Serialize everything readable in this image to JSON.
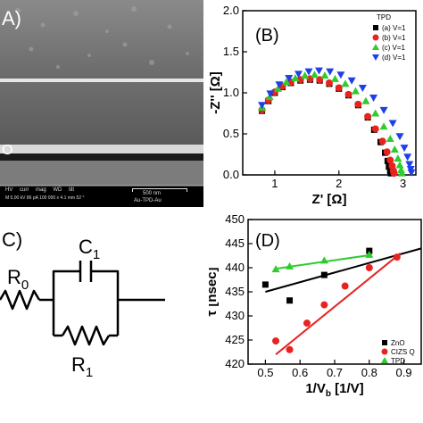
{
  "panel_a": {
    "label": "A)",
    "layer_label": "O",
    "sem_bar": {
      "fields": [
        "HV",
        "curr",
        "mag",
        "WD",
        "tilt"
      ],
      "values": "M 5.00 kV 86 pA 100 000 x 4.1 mm 52 °",
      "scale_label": "500 nm",
      "sample": "Au-TPD-Au"
    }
  },
  "panel_b": {
    "label": "(B)",
    "legend_title": "TPD",
    "legend_items": [
      "(a) V=1",
      "(b) V=1",
      "(c) V=1",
      "(d) V=1"
    ]
  },
  "panel_c": {
    "label": "C)",
    "components": {
      "r0": "R",
      "r0_sub": "0",
      "c1": "C",
      "c1_sub": "1",
      "r1": "R",
      "r1_sub": "1"
    }
  },
  "panel_d": {
    "label": "(D)",
    "legend_items": [
      "ZnO",
      "CIZS Q",
      "TPD"
    ]
  },
  "chart_data": [
    {
      "type": "scatter",
      "title": "(B)",
      "xlabel": "Z' [Ω]",
      "ylabel": "-Z'' [Ω]",
      "xlim": [
        0.5,
        3.2
      ],
      "ylim": [
        0,
        2.0
      ],
      "xticks": [
        1,
        2,
        3
      ],
      "yticks": [
        0.0,
        0.5,
        1.0,
        1.5,
        2.0
      ],
      "legend": "top-right",
      "legend_title": "TPD",
      "series": [
        {
          "name": "(a) V=1",
          "color": "#000000",
          "marker": "square",
          "x": [
            0.8,
            0.9,
            1.0,
            1.12,
            1.25,
            1.4,
            1.55,
            1.7,
            1.85,
            2.0,
            2.15,
            2.3,
            2.45,
            2.55,
            2.65,
            2.72,
            2.76,
            2.78,
            2.8,
            2.81
          ],
          "y": [
            0.78,
            0.9,
            1.0,
            1.07,
            1.12,
            1.15,
            1.16,
            1.15,
            1.11,
            1.05,
            0.97,
            0.85,
            0.7,
            0.55,
            0.4,
            0.27,
            0.17,
            0.1,
            0.05,
            0.02
          ]
        },
        {
          "name": "(b) V=1",
          "color": "#e8231f",
          "marker": "circle",
          "x": [
            0.8,
            0.9,
            1.0,
            1.12,
            1.25,
            1.4,
            1.55,
            1.7,
            1.85,
            2.0,
            2.15,
            2.3,
            2.45,
            2.57,
            2.68,
            2.75,
            2.8,
            2.83,
            2.85,
            2.86
          ],
          "y": [
            0.79,
            0.91,
            1.01,
            1.08,
            1.13,
            1.16,
            1.17,
            1.16,
            1.12,
            1.06,
            0.98,
            0.86,
            0.71,
            0.56,
            0.41,
            0.28,
            0.18,
            0.11,
            0.05,
            0.02
          ]
        },
        {
          "name": "(c) V=1",
          "color": "#2ecc2e",
          "marker": "triangle-up",
          "x": [
            0.8,
            0.92,
            1.05,
            1.18,
            1.32,
            1.47,
            1.62,
            1.78,
            1.94,
            2.1,
            2.26,
            2.42,
            2.57,
            2.7,
            2.8,
            2.87,
            2.92,
            2.95,
            2.97,
            2.98
          ],
          "y": [
            0.82,
            0.95,
            1.05,
            1.13,
            1.18,
            1.21,
            1.22,
            1.21,
            1.17,
            1.11,
            1.02,
            0.9,
            0.75,
            0.59,
            0.44,
            0.31,
            0.2,
            0.12,
            0.06,
            0.02
          ]
        },
        {
          "name": "(d) V=1",
          "color": "#1f3fe8",
          "marker": "triangle-down",
          "x": [
            0.8,
            0.93,
            1.07,
            1.22,
            1.37,
            1.53,
            1.69,
            1.86,
            2.03,
            2.2,
            2.37,
            2.54,
            2.7,
            2.84,
            2.95,
            3.02,
            3.07,
            3.1,
            3.12,
            3.13
          ],
          "y": [
            0.85,
            0.99,
            1.1,
            1.18,
            1.23,
            1.26,
            1.27,
            1.26,
            1.22,
            1.15,
            1.06,
            0.94,
            0.79,
            0.63,
            0.47,
            0.33,
            0.22,
            0.13,
            0.07,
            0.03
          ]
        }
      ]
    },
    {
      "type": "scatter",
      "title": "(D)",
      "xlabel": "1/V",
      "xlabel_sub": "b",
      "xlabel_suffix": " [1/V]",
      "ylabel": "τ [nsec]",
      "xlim": [
        0.45,
        0.95
      ],
      "ylim": [
        420,
        450
      ],
      "xticks": [
        0.5,
        0.6,
        0.7,
        0.8,
        0.9
      ],
      "yticks": [
        420,
        425,
        430,
        435,
        440,
        445,
        450
      ],
      "legend": "bottom-right",
      "series": [
        {
          "name": "ZnO",
          "color": "#000000",
          "marker": "square",
          "x": [
            0.5,
            0.57,
            0.67,
            0.8
          ],
          "y": [
            436.5,
            433.2,
            438.5,
            443.5
          ],
          "fit": [
            [
              0.5,
              435.0
            ],
            [
              0.95,
              444.0
            ]
          ]
        },
        {
          "name": "CIZS Q",
          "color": "#e8231f",
          "marker": "circle",
          "x": [
            0.53,
            0.57,
            0.62,
            0.67,
            0.73,
            0.8,
            0.88
          ],
          "y": [
            424.8,
            423.0,
            428.5,
            432.3,
            436.2,
            440.0,
            442.2
          ],
          "fit": [
            [
              0.53,
              422.0
            ],
            [
              0.89,
              443.0
            ]
          ]
        },
        {
          "name": "TPD",
          "color": "#2ecc2e",
          "marker": "triangle-up",
          "x": [
            0.53,
            0.57,
            0.67,
            0.8
          ],
          "y": [
            439.7,
            440.3,
            441.5,
            442.7
          ],
          "fit": [
            [
              0.53,
              439.8
            ],
            [
              0.8,
              442.6
            ]
          ]
        }
      ]
    }
  ]
}
